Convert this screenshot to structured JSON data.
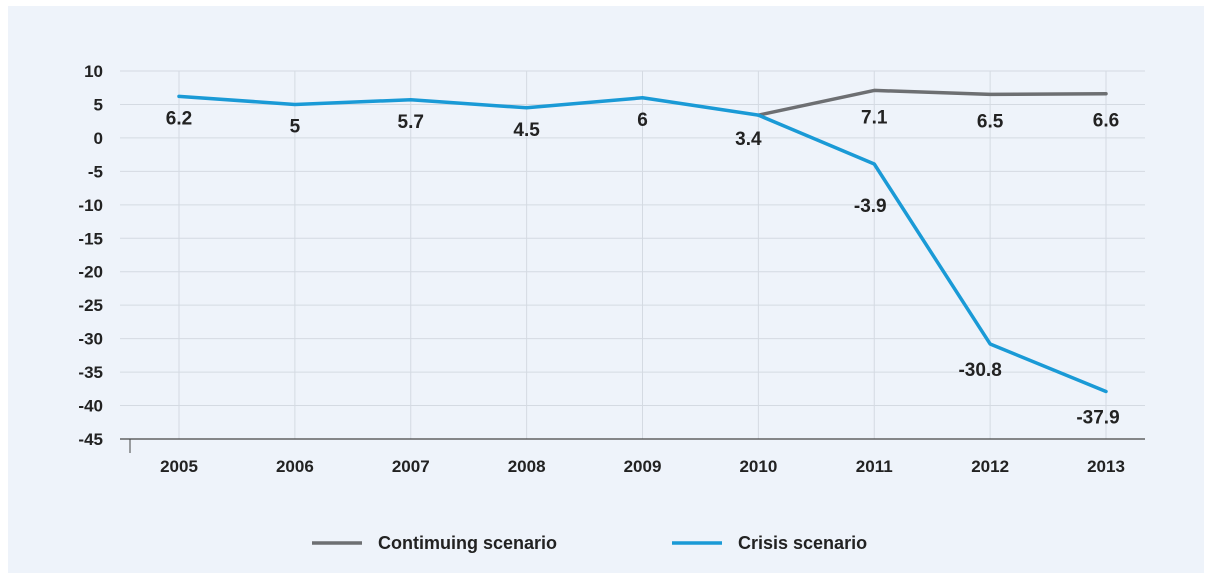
{
  "chart_data": {
    "type": "line",
    "title": "",
    "xlabel": "",
    "ylabel": "",
    "categories": [
      "2005",
      "2006",
      "2007",
      "2008",
      "2009",
      "2010",
      "2011",
      "2012",
      "2013"
    ],
    "ylim": [
      -45,
      10
    ],
    "yticks": [
      10,
      5,
      0,
      -5,
      -10,
      -15,
      -20,
      -25,
      -30,
      -35,
      -40,
      -45
    ],
    "grid": true,
    "legend_position": "bottom",
    "series": [
      {
        "name": "Contimuing scenario",
        "color": "#6d6f72",
        "values": [
          null,
          null,
          null,
          null,
          null,
          3.4,
          7.1,
          6.5,
          6.6
        ],
        "labels": [
          "",
          "",
          "",
          "",
          "",
          "",
          "7.1",
          "6.5",
          "6.6"
        ]
      },
      {
        "name": "Crisis scenario",
        "color": "#1a9ad6",
        "values": [
          6.2,
          5,
          5.7,
          4.5,
          6,
          3.4,
          -3.9,
          -30.8,
          -37.9
        ],
        "labels": [
          "6.2",
          "5",
          "5.7",
          "4.5",
          "6",
          "3.4",
          "-3.9",
          "-30.8",
          "-37.9"
        ]
      }
    ]
  }
}
